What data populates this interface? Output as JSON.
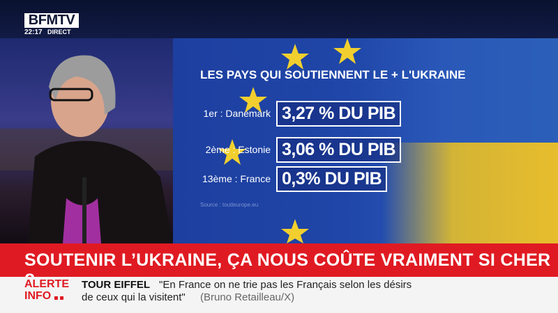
{
  "header": {
    "logo": "BFMTV",
    "time": "22:17",
    "live": "DIRECT"
  },
  "graphic": {
    "title": "LES PAYS QUI SOUTIENNENT LE + L'UKRAINE",
    "rows": [
      {
        "label": "1er : Danemark",
        "value": "3,27 % DU PIB"
      },
      {
        "label": "2ème : Estonie",
        "value": "3,06 % DU PIB"
      },
      {
        "label": "13ème : France",
        "value": "0,3% DU PIB"
      }
    ],
    "source_label": "Source :",
    "source": "toutleurope.eu"
  },
  "headline": "SOUTENIR L’UKRAINE, ÇA NOUS COÛTE VRAIMENT SI CHER ?",
  "ticker": {
    "alert": "ALERTE",
    "info": "INFO",
    "topic": "TOUR EIFFEL",
    "quote_line1": "\"En France on ne trie pas les Français selon les désirs",
    "quote_line2": "de ceux qui la visitent\"",
    "author": "(Bruno Retailleau/X)"
  }
}
